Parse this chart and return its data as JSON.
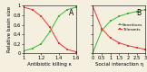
{
  "panel_A": {
    "label": "A",
    "xlabel": "Antibiotic killing κ",
    "ylabel": "Relative basin size",
    "xlim": [
      1.0,
      1.6
    ],
    "ylim": [
      0.0,
      1.0
    ],
    "xticks": [
      1.0,
      1.2,
      1.4,
      1.6
    ],
    "xticklabels": [
      "1",
      "1.2",
      "1.4",
      "1.6"
    ],
    "yticks": [
      0.0,
      0.2,
      0.4,
      0.6,
      0.8,
      1.0
    ],
    "yticklabels": [
      "0",
      "0.2",
      "0.4",
      "0.6",
      "0.8",
      "1"
    ],
    "sensitives_x": [
      1.0,
      1.1,
      1.2,
      1.3,
      1.4,
      1.5,
      1.6
    ],
    "sensitives_y": [
      0.05,
      0.1,
      0.2,
      0.45,
      0.78,
      0.92,
      0.97
    ],
    "tolerants_x": [
      1.0,
      1.1,
      1.2,
      1.3,
      1.4,
      1.5,
      1.6
    ],
    "tolerants_y": [
      0.97,
      0.92,
      0.78,
      0.55,
      0.22,
      0.08,
      0.03
    ],
    "color_sensitives": "#33bb33",
    "color_tolerants": "#ee3333"
  },
  "panel_B": {
    "label": "B",
    "xlabel": "Social interaction η",
    "xlim": [
      0.0,
      3.0
    ],
    "ylim": [
      0.0,
      1.0
    ],
    "xticks": [
      0.0,
      0.5,
      1.0,
      1.5,
      2.0,
      2.5,
      3.0
    ],
    "xticklabels": [
      "0",
      "0.5",
      "1",
      "1.5",
      "2",
      "2.5",
      "3"
    ],
    "yticks": [
      0.0,
      0.2,
      0.4,
      0.6,
      0.8,
      1.0
    ],
    "sensitives_x": [
      0.0,
      0.5,
      1.0,
      1.5,
      2.0,
      2.5,
      3.0
    ],
    "sensitives_y": [
      0.02,
      0.48,
      0.68,
      0.78,
      0.84,
      0.88,
      0.92
    ],
    "tolerants_x": [
      0.0,
      0.5,
      1.0,
      1.5,
      2.0,
      2.5,
      3.0
    ],
    "tolerants_y": [
      0.98,
      0.52,
      0.32,
      0.22,
      0.16,
      0.12,
      0.08
    ],
    "color_sensitives": "#33bb33",
    "color_tolerants": "#ee3333",
    "legend_sensitives": "Sensitives",
    "legend_tolerants": "Tolerants"
  },
  "bg_color": "#f5efe0",
  "label_fontsize": 4.0,
  "tick_fontsize": 3.8,
  "linewidth": 0.7,
  "markersize": 1.8,
  "panel_label_fontsize": 5.5
}
